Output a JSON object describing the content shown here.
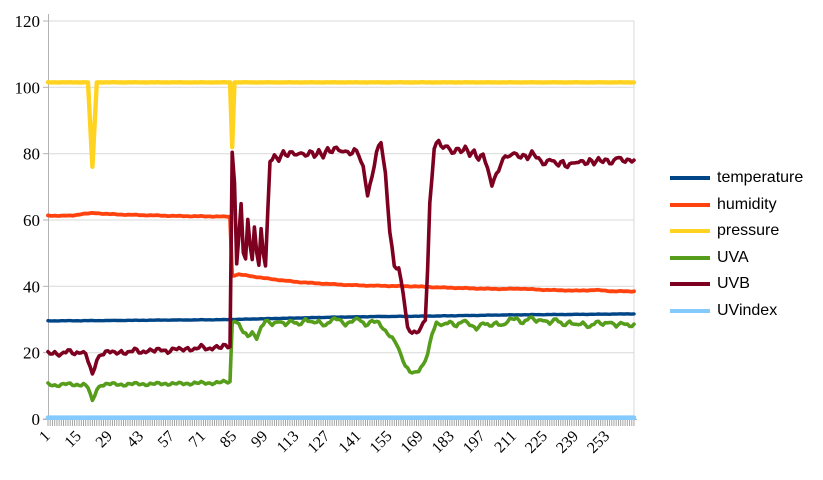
{
  "chart_data": {
    "type": "line",
    "title": "",
    "xlabel": "",
    "ylabel": "",
    "grid": true,
    "legend_position": "right",
    "background_color": "#ffffff",
    "grid_color": "#d9d9d9",
    "axis_color": "#b3b3b3",
    "tick_color": "#9a9a9a",
    "label_color": "#000000",
    "x_axis": {
      "range": [
        1,
        265
      ],
      "minor_tick_step": 1,
      "tick_labels": [
        "1",
        "15",
        "29",
        "43",
        "57",
        "71",
        "85",
        "99",
        "113",
        "127",
        "141",
        "155",
        "169",
        "183",
        "197",
        "211",
        "225",
        "239",
        "253"
      ],
      "tick_label_values": [
        1,
        15,
        29,
        43,
        57,
        71,
        85,
        99,
        113,
        127,
        141,
        155,
        169,
        183,
        197,
        211,
        225,
        239,
        253
      ],
      "label_rotation_deg": -45
    },
    "y_axis": {
      "range": [
        0,
        120
      ],
      "ticks": [
        0,
        20,
        40,
        60,
        80,
        100,
        120
      ]
    },
    "series": [
      {
        "name": "temperature",
        "color": "#004586",
        "line_width": 3.4,
        "noise": 0.06,
        "points": [
          [
            1,
            29.6
          ],
          [
            20,
            29.65
          ],
          [
            40,
            29.75
          ],
          [
            60,
            29.85
          ],
          [
            80,
            29.95
          ],
          [
            90,
            30.1
          ],
          [
            110,
            30.4
          ],
          [
            130,
            30.7
          ],
          [
            150,
            30.9
          ],
          [
            170,
            31.0
          ],
          [
            190,
            31.2
          ],
          [
            210,
            31.4
          ],
          [
            230,
            31.5
          ],
          [
            250,
            31.6
          ],
          [
            265,
            31.7
          ]
        ]
      },
      {
        "name": "humidity",
        "color": "#ff420e",
        "line_width": 3.8,
        "noise": 0.12,
        "points": [
          [
            1,
            61.3
          ],
          [
            12,
            61.3
          ],
          [
            16,
            61.8
          ],
          [
            22,
            62.1
          ],
          [
            28,
            61.8
          ],
          [
            36,
            61.6
          ],
          [
            48,
            61.4
          ],
          [
            60,
            61.2
          ],
          [
            72,
            61.1
          ],
          [
            83,
            61.0
          ],
          [
            84,
            43.2
          ],
          [
            87,
            43.6
          ],
          [
            90,
            43.3
          ],
          [
            94,
            42.9
          ],
          [
            98,
            42.5
          ],
          [
            104,
            42.0
          ],
          [
            112,
            41.4
          ],
          [
            120,
            41.0
          ],
          [
            128,
            40.7
          ],
          [
            136,
            40.4
          ],
          [
            146,
            40.2
          ],
          [
            156,
            40.1
          ],
          [
            166,
            40.0
          ],
          [
            176,
            39.7
          ],
          [
            186,
            39.5
          ],
          [
            196,
            39.3
          ],
          [
            206,
            39.2
          ],
          [
            214,
            39.3
          ],
          [
            222,
            39.0
          ],
          [
            232,
            38.8
          ],
          [
            240,
            38.7
          ],
          [
            248,
            38.9
          ],
          [
            256,
            38.5
          ],
          [
            265,
            38.5
          ]
        ]
      },
      {
        "name": "pressure",
        "color": "#ffd320",
        "line_width": 4.4,
        "noise": 0.05,
        "points": [
          [
            1,
            101.5
          ],
          [
            19,
            101.5
          ],
          [
            21,
            76.0
          ],
          [
            23,
            101.5
          ],
          [
            82,
            101.5
          ],
          [
            83,
            101.5
          ],
          [
            84,
            82.0
          ],
          [
            85,
            101.5
          ],
          [
            265,
            101.5
          ]
        ]
      },
      {
        "name": "UVA",
        "color": "#579d1c",
        "line_width": 3.6,
        "noise": 0.55,
        "points": [
          [
            1,
            10.4
          ],
          [
            5,
            10.2
          ],
          [
            9,
            10.5
          ],
          [
            13,
            10.3
          ],
          [
            17,
            10.5
          ],
          [
            19,
            9.5
          ],
          [
            21,
            5.2
          ],
          [
            23,
            9.0
          ],
          [
            25,
            10.4
          ],
          [
            30,
            10.5
          ],
          [
            36,
            10.4
          ],
          [
            42,
            10.6
          ],
          [
            48,
            10.5
          ],
          [
            54,
            10.7
          ],
          [
            60,
            10.6
          ],
          [
            66,
            10.8
          ],
          [
            72,
            10.8
          ],
          [
            78,
            11.0
          ],
          [
            83,
            11.2
          ],
          [
            84,
            29.0
          ],
          [
            85,
            30.0
          ],
          [
            87,
            28.5
          ],
          [
            89,
            26.0
          ],
          [
            91,
            24.8
          ],
          [
            93,
            26.2
          ],
          [
            95,
            24.6
          ],
          [
            97,
            27.5
          ],
          [
            99,
            29.5
          ],
          [
            102,
            28.5
          ],
          [
            105,
            29.8
          ],
          [
            108,
            28.3
          ],
          [
            111,
            29.5
          ],
          [
            114,
            28.6
          ],
          [
            117,
            30.0
          ],
          [
            120,
            28.8
          ],
          [
            123,
            29.6
          ],
          [
            126,
            28.2
          ],
          [
            129,
            29.8
          ],
          [
            132,
            30.2
          ],
          [
            135,
            28.6
          ],
          [
            138,
            29.4
          ],
          [
            141,
            30.2
          ],
          [
            144,
            28.4
          ],
          [
            147,
            29.6
          ],
          [
            150,
            28.8
          ],
          [
            152,
            27.2
          ],
          [
            154,
            26.0
          ],
          [
            156,
            24.6
          ],
          [
            158,
            22.6
          ],
          [
            160,
            19.0
          ],
          [
            162,
            16.0
          ],
          [
            164,
            14.6
          ],
          [
            166,
            14.0
          ],
          [
            168,
            14.4
          ],
          [
            170,
            16.0
          ],
          [
            172,
            19.5
          ],
          [
            174,
            26.0
          ],
          [
            176,
            29.0
          ],
          [
            179,
            28.0
          ],
          [
            182,
            29.4
          ],
          [
            185,
            28.2
          ],
          [
            188,
            29.6
          ],
          [
            191,
            28.4
          ],
          [
            194,
            27.4
          ],
          [
            197,
            29.0
          ],
          [
            200,
            27.8
          ],
          [
            203,
            29.2
          ],
          [
            206,
            28.2
          ],
          [
            209,
            29.8
          ],
          [
            212,
            30.4
          ],
          [
            215,
            29.0
          ],
          [
            218,
            30.6
          ],
          [
            221,
            29.4
          ],
          [
            224,
            30.2
          ],
          [
            227,
            28.8
          ],
          [
            230,
            30.0
          ],
          [
            233,
            28.4
          ],
          [
            236,
            29.4
          ],
          [
            239,
            28.0
          ],
          [
            242,
            29.0
          ],
          [
            245,
            27.8
          ],
          [
            248,
            29.2
          ],
          [
            251,
            28.4
          ],
          [
            254,
            29.6
          ],
          [
            257,
            28.0
          ],
          [
            260,
            28.8
          ],
          [
            263,
            28.2
          ],
          [
            265,
            28.6
          ]
        ]
      },
      {
        "name": "UVB",
        "color": "#7e0021",
        "line_width": 3.6,
        "noise": 0.8,
        "points": [
          [
            1,
            19.6
          ],
          [
            4,
            20.2
          ],
          [
            7,
            19.4
          ],
          [
            10,
            20.4
          ],
          [
            13,
            19.8
          ],
          [
            16,
            20.6
          ],
          [
            18,
            19.4
          ],
          [
            19,
            17.5
          ],
          [
            21,
            13.0
          ],
          [
            23,
            18.0
          ],
          [
            25,
            19.8
          ],
          [
            28,
            20.3
          ],
          [
            31,
            19.7
          ],
          [
            34,
            20.5
          ],
          [
            37,
            19.9
          ],
          [
            40,
            20.7
          ],
          [
            43,
            20.1
          ],
          [
            46,
            20.9
          ],
          [
            49,
            20.3
          ],
          [
            52,
            21.0
          ],
          [
            55,
            20.5
          ],
          [
            58,
            21.1
          ],
          [
            61,
            20.7
          ],
          [
            64,
            21.5
          ],
          [
            67,
            20.9
          ],
          [
            70,
            21.7
          ],
          [
            73,
            21.1
          ],
          [
            76,
            21.9
          ],
          [
            79,
            21.3
          ],
          [
            81,
            22.1
          ],
          [
            83,
            21.7
          ],
          [
            84,
            80.5
          ],
          [
            85,
            72.0
          ],
          [
            86,
            47.0
          ],
          [
            87,
            55.0
          ],
          [
            88,
            65.0
          ],
          [
            89,
            50.0
          ],
          [
            90,
            47.5
          ],
          [
            91,
            60.0
          ],
          [
            92,
            53.0
          ],
          [
            93,
            48.0
          ],
          [
            94,
            58.0
          ],
          [
            95,
            51.0
          ],
          [
            96,
            46.5
          ],
          [
            97,
            57.0
          ],
          [
            98,
            50.0
          ],
          [
            99,
            46.0
          ],
          [
            100,
            62.0
          ],
          [
            101,
            77.5
          ],
          [
            103,
            79.5
          ],
          [
            105,
            78.5
          ],
          [
            107,
            80.5
          ],
          [
            109,
            79.0
          ],
          [
            111,
            80.5
          ],
          [
            113,
            79.5
          ],
          [
            115,
            81.0
          ],
          [
            117,
            79.0
          ],
          [
            119,
            80.5
          ],
          [
            121,
            79.0
          ],
          [
            123,
            81.0
          ],
          [
            125,
            79.5
          ],
          [
            127,
            81.5
          ],
          [
            129,
            80.0
          ],
          [
            131,
            82.0
          ],
          [
            133,
            80.5
          ],
          [
            135,
            81.5
          ],
          [
            137,
            79.5
          ],
          [
            139,
            81.0
          ],
          [
            141,
            79.5
          ],
          [
            143,
            76.0
          ],
          [
            145,
            68.0
          ],
          [
            147,
            73.0
          ],
          [
            149,
            80.0
          ],
          [
            151,
            83.5
          ],
          [
            153,
            74.0
          ],
          [
            155,
            57.0
          ],
          [
            157,
            46.0
          ],
          [
            159,
            45.0
          ],
          [
            161,
            38.0
          ],
          [
            163,
            27.5
          ],
          [
            165,
            26.5
          ],
          [
            167,
            26.0
          ],
          [
            169,
            27.0
          ],
          [
            171,
            30.0
          ],
          [
            172,
            45.0
          ],
          [
            173,
            65.0
          ],
          [
            175,
            82.0
          ],
          [
            177,
            84.0
          ],
          [
            179,
            81.0
          ],
          [
            181,
            82.5
          ],
          [
            183,
            80.0
          ],
          [
            185,
            82.0
          ],
          [
            187,
            80.5
          ],
          [
            189,
            81.5
          ],
          [
            191,
            79.5
          ],
          [
            193,
            81.0
          ],
          [
            195,
            78.5
          ],
          [
            197,
            80.0
          ],
          [
            199,
            75.0
          ],
          [
            201,
            70.5
          ],
          [
            203,
            74.0
          ],
          [
            205,
            77.0
          ],
          [
            207,
            79.5
          ],
          [
            209,
            78.5
          ],
          [
            211,
            80.5
          ],
          [
            213,
            79.0
          ],
          [
            215,
            80.0
          ],
          [
            217,
            78.5
          ],
          [
            219,
            80.0
          ],
          [
            221,
            79.0
          ],
          [
            223,
            78.0
          ],
          [
            225,
            77.0
          ],
          [
            227,
            78.5
          ],
          [
            229,
            77.0
          ],
          [
            231,
            76.5
          ],
          [
            233,
            78.0
          ],
          [
            235,
            76.0
          ],
          [
            237,
            77.5
          ],
          [
            239,
            76.5
          ],
          [
            241,
            78.0
          ],
          [
            243,
            77.0
          ],
          [
            245,
            78.5
          ],
          [
            247,
            77.0
          ],
          [
            249,
            78.0
          ],
          [
            251,
            77.5
          ],
          [
            253,
            78.5
          ],
          [
            255,
            77.0
          ],
          [
            257,
            79.0
          ],
          [
            259,
            78.0
          ],
          [
            261,
            77.5
          ],
          [
            263,
            78.5
          ],
          [
            265,
            78.0
          ]
        ]
      },
      {
        "name": "UVindex",
        "color": "#83caff",
        "line_width": 4.6,
        "noise": 0,
        "points": [
          [
            1,
            0.4
          ],
          [
            265,
            0.4
          ]
        ]
      }
    ]
  },
  "legend": {
    "items": [
      "temperature",
      "humidity",
      "pressure",
      "UVA",
      "UVB",
      "UVindex"
    ]
  }
}
